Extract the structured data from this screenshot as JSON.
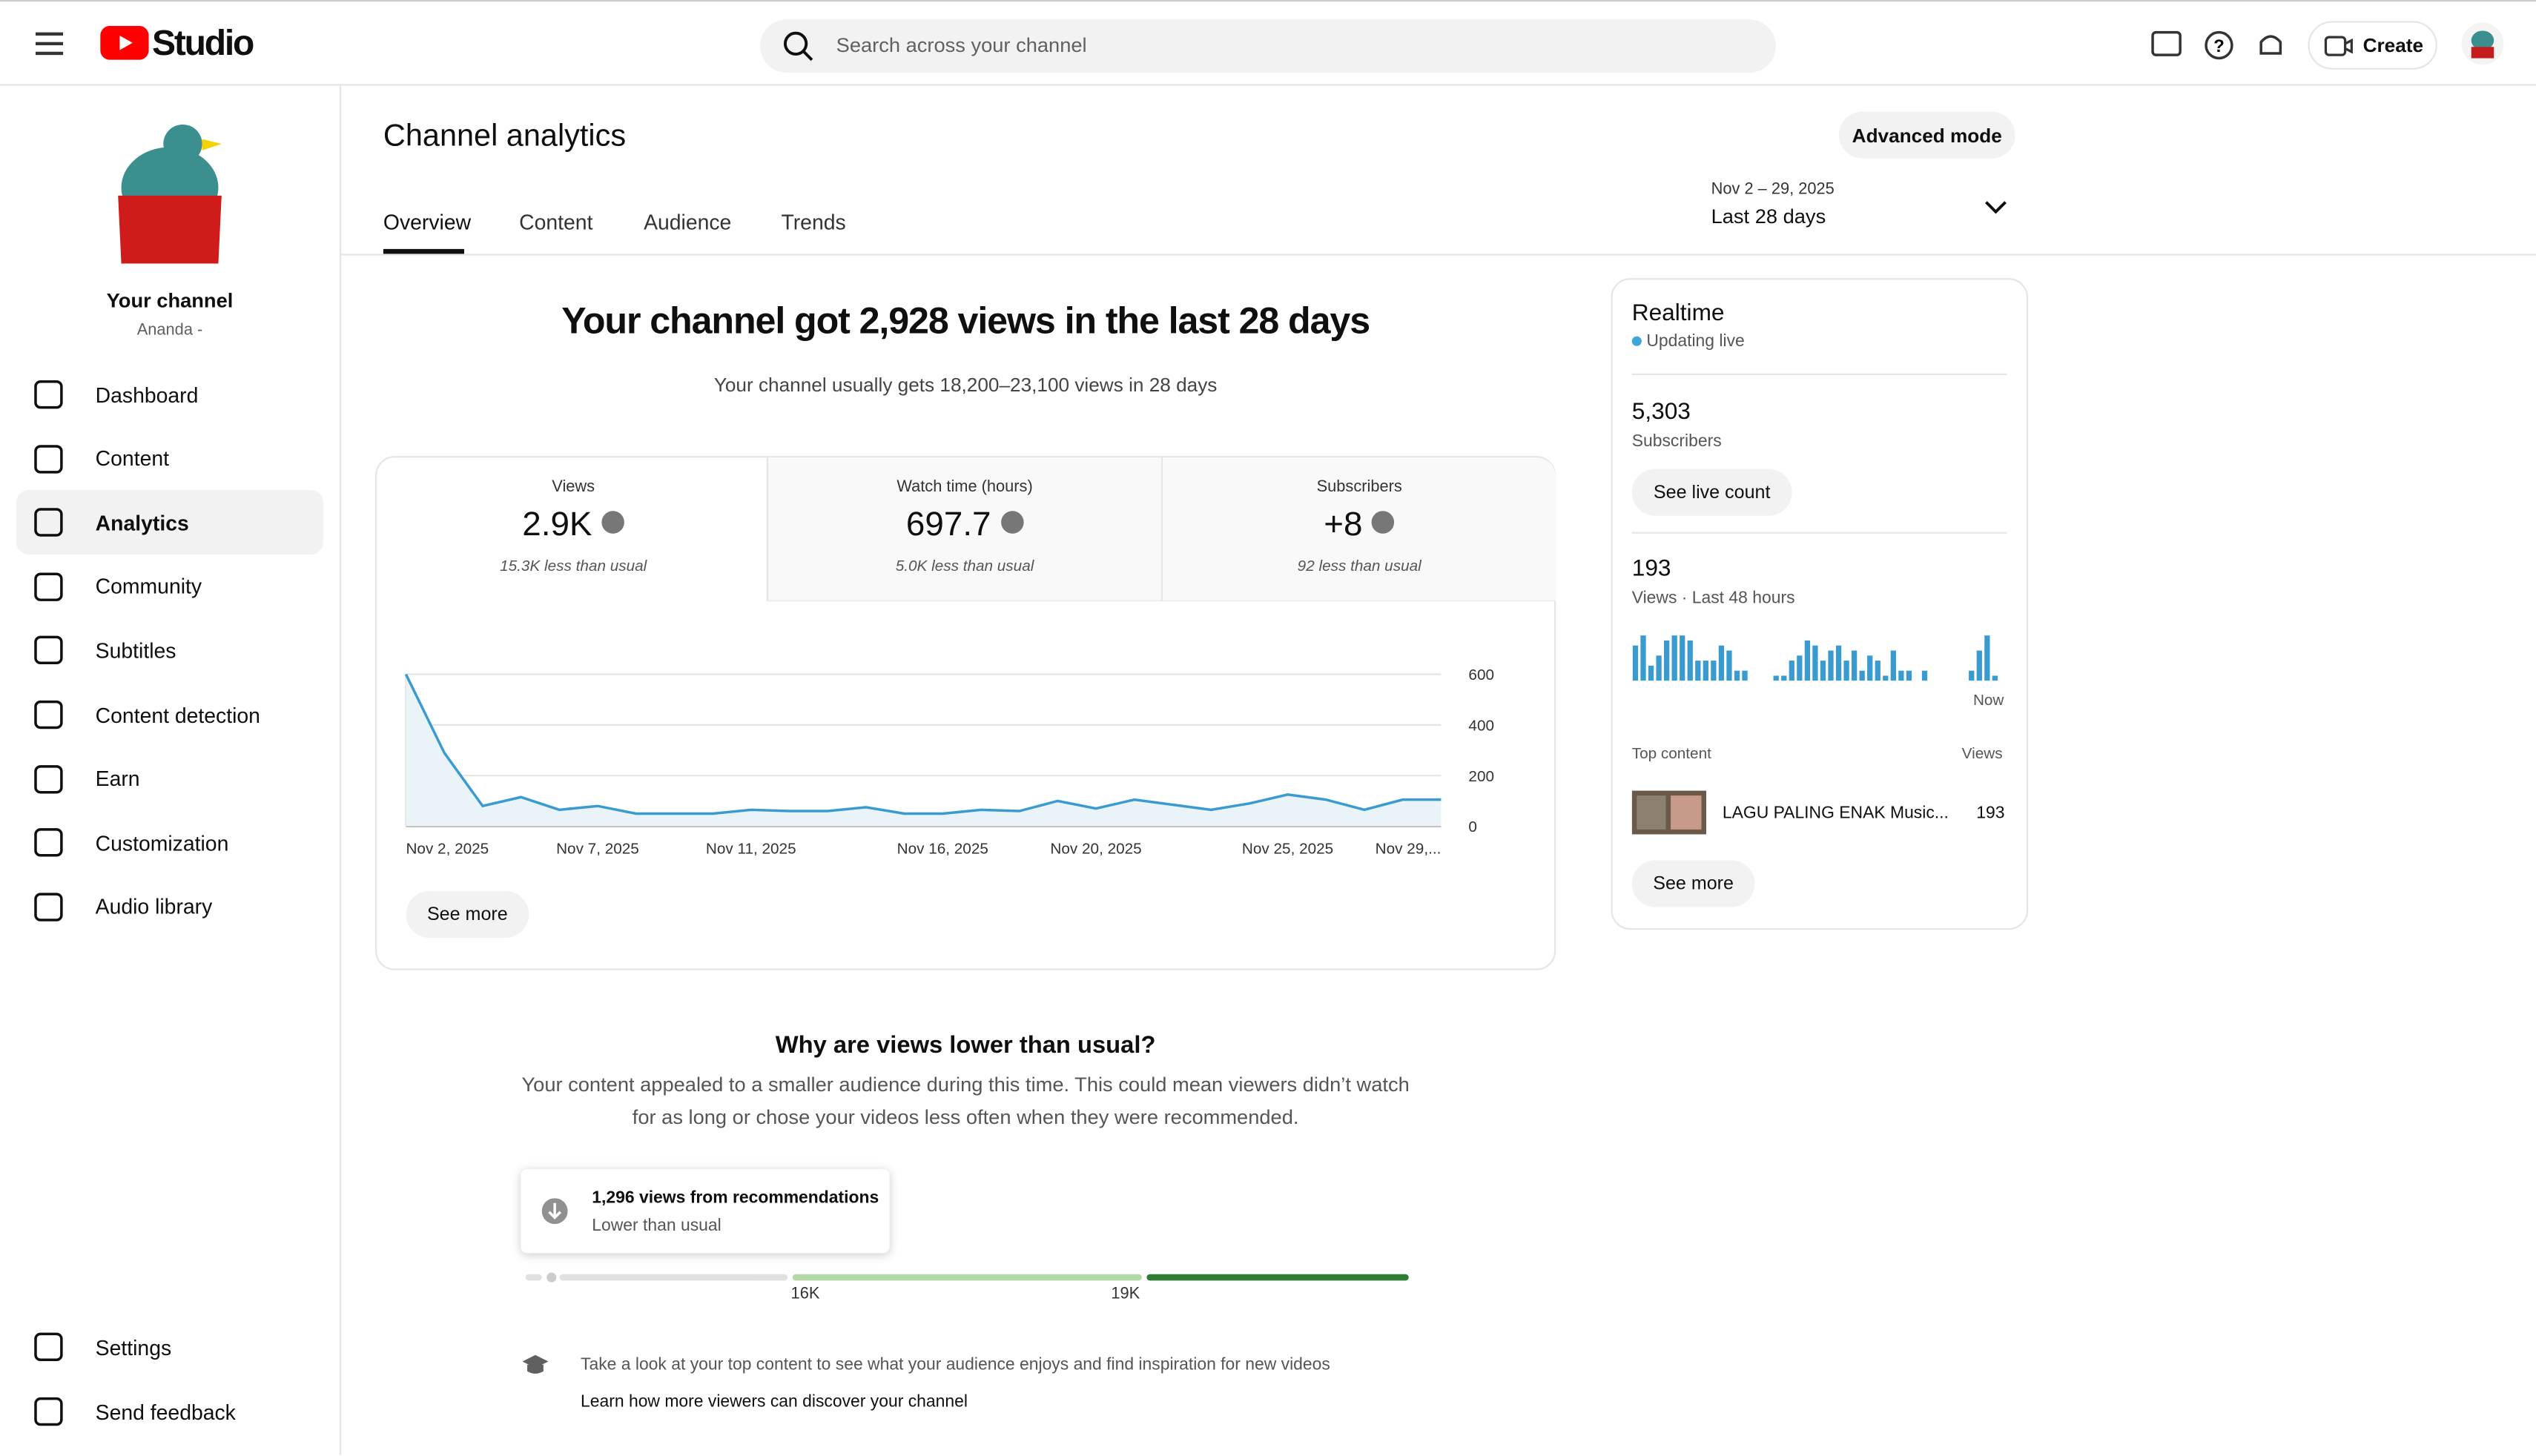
{
  "header": {
    "logo": "Studio",
    "search_placeholder": "Search across your channel",
    "create": "Create"
  },
  "sidebar": {
    "channel_name": "Your channel",
    "channel_handle": "Ananda -",
    "nav": [
      "Dashboard",
      "Content",
      "Analytics",
      "Community",
      "Subtitles",
      "Content detection",
      "Earn",
      "Customization",
      "Audio library"
    ],
    "bottom": [
      "Settings",
      "Send feedback"
    ]
  },
  "page": {
    "title": "Channel analytics",
    "advanced": "Advanced mode",
    "tabs": [
      "Overview",
      "Content",
      "Audience",
      "Trends"
    ],
    "date_range": "Nov 2 – 29, 2025",
    "date_label": "Last 28 days"
  },
  "summary": {
    "headline": "Your channel got 2,928 views in the last 28 days",
    "subline": "Your channel usually gets 18,200–23,100 views in 28 days",
    "metrics": [
      {
        "label": "Views",
        "value": "2.9K",
        "note": "15.3K less than usual"
      },
      {
        "label": "Watch time (hours)",
        "value": "697.7",
        "note": "5.0K less than usual"
      },
      {
        "label": "Subscribers",
        "value": "+8",
        "note": "92 less than usual"
      }
    ],
    "see_more": "See more"
  },
  "chart_data": {
    "type": "line",
    "categories": [
      "Nov 2, 2025",
      null,
      null,
      null,
      null,
      "Nov 7, 2025",
      null,
      null,
      null,
      "Nov 11, 2025",
      null,
      null,
      null,
      null,
      "Nov 16, 2025",
      null,
      null,
      null,
      "Nov 20, 2025",
      null,
      null,
      null,
      null,
      "Nov 25, 2025",
      null,
      null,
      null,
      "Nov 29,..."
    ],
    "values": [
      600,
      290,
      80,
      115,
      65,
      80,
      50,
      50,
      50,
      65,
      60,
      60,
      75,
      50,
      50,
      65,
      60,
      100,
      70,
      105,
      85,
      65,
      90,
      125,
      105,
      65,
      105,
      105
    ],
    "color": "#3a9bd0",
    "ylim": [
      0,
      600
    ],
    "yticks": [
      0,
      200,
      400,
      600
    ],
    "grid": true
  },
  "why": {
    "title": "Why are views lower than usual?",
    "text": [
      "Your content appealed to a smaller audience during this time. This could mean viewers didn’t watch",
      "for as long or chose your videos less often when they were recommended."
    ],
    "callout_title": "1,296 views from recommendations",
    "callout_sub": "Lower than usual",
    "scale_labels": [
      "16K",
      "19K"
    ],
    "tip": "Take a look at your top content to see what your audience enjoys and find inspiration for new videos",
    "link": "Learn how more viewers can discover your channel"
  },
  "realtime": {
    "title": "Realtime",
    "status": "Updating live",
    "subscribers": "5,303",
    "subscribers_label": "Subscribers",
    "live_count": "See live count",
    "views": "193",
    "views_label": "Views · Last 48 hours",
    "bars": [
      7,
      9,
      3,
      5,
      8,
      9,
      9,
      8,
      4,
      4,
      4,
      7,
      6,
      2,
      2,
      0,
      0,
      0,
      1,
      1,
      4,
      5,
      8,
      7,
      4,
      6,
      7,
      4,
      6,
      2,
      5,
      4,
      1,
      6,
      2,
      2,
      0,
      2,
      0,
      0,
      0,
      0,
      0,
      2,
      6,
      9,
      1,
      0
    ],
    "now": "Now",
    "top_content": "Top content",
    "views_col": "Views",
    "video_title": "LAGU PALING ENAK Music...",
    "video_views": "193",
    "see_more": "See more"
  }
}
